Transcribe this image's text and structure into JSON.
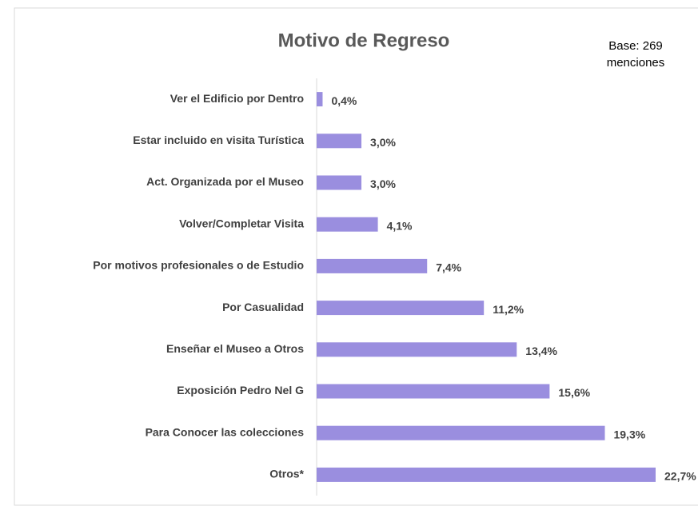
{
  "chart_data": {
    "type": "barh",
    "title": "Motivo de Regreso",
    "annotations": [
      "Base: 269",
      "menciones"
    ],
    "categories": [
      "Ver el Edificio por Dentro",
      "Estar incluido en visita Turística",
      "Act. Organizada por el Museo",
      "Volver/Completar Visita",
      "Por motivos profesionales o de Estudio",
      "Por Casualidad",
      "Enseñar el Museo a Otros",
      "Exposición Pedro Nel G",
      "Para Conocer las colecciones",
      "Otros*"
    ],
    "values": [
      0.4,
      3.0,
      3.0,
      4.1,
      7.4,
      11.2,
      13.4,
      15.6,
      19.3,
      22.7
    ],
    "value_labels": [
      "0,4%",
      "3,0%",
      "3,0%",
      "4,1%",
      "7,4%",
      "11,2%",
      "13,4%",
      "15,6%",
      "19,3%",
      "22,7%"
    ],
    "color": "#9a8edf"
  }
}
